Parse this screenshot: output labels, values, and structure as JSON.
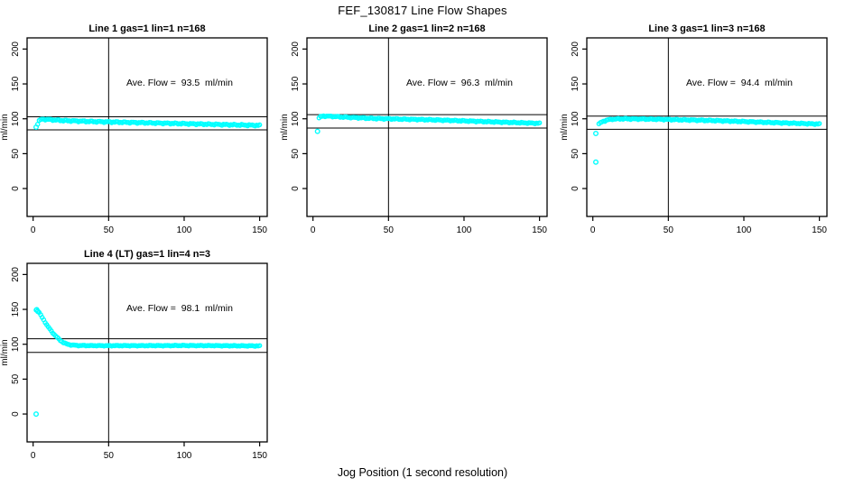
{
  "page_title": "FEF_130817  Line Flow Shapes",
  "xaxis_label": "Jog Position (1 second resolution)",
  "colors": {
    "marker": "#00ffff",
    "axis": "#000000",
    "background": "#ffffff"
  },
  "chart_data": [
    {
      "type": "scatter",
      "title": "Line 1 gas=1 lin=1 n=168",
      "annotation": "Ave. Flow =  93.5  ml/min",
      "ave_flow_ml_min": 93.5,
      "n": 168,
      "ylabel": "ml/min",
      "xticks": [
        0,
        50,
        100,
        150
      ],
      "yticks": [
        0,
        50,
        100,
        150,
        200
      ],
      "xlim": [
        -4,
        155
      ],
      "ylim": [
        -40,
        216
      ],
      "vline_x": 50,
      "hlines_y": [
        102.9,
        84.2
      ],
      "points_x_step": 1,
      "curve_keypoints": [
        [
          3,
          93
        ],
        [
          4,
          97.5
        ],
        [
          6,
          99.5
        ],
        [
          10,
          99
        ],
        [
          20,
          97.5
        ],
        [
          40,
          96
        ],
        [
          60,
          95
        ],
        [
          80,
          94
        ],
        [
          100,
          93
        ],
        [
          120,
          92
        ],
        [
          150,
          90.5
        ]
      ],
      "outliers": [
        [
          2,
          88
        ]
      ],
      "noise_amp": 1.1
    },
    {
      "type": "scatter",
      "title": "Line 2 gas=1 lin=2 n=168",
      "annotation": "Ave. Flow =  96.3  ml/min",
      "ave_flow_ml_min": 96.3,
      "n": 168,
      "ylabel": "ml/min",
      "xticks": [
        0,
        50,
        100,
        150
      ],
      "yticks": [
        0,
        50,
        100,
        150,
        200
      ],
      "xlim": [
        -4,
        155
      ],
      "ylim": [
        -40,
        216
      ],
      "vline_x": 50,
      "hlines_y": [
        105.9,
        86.7
      ],
      "points_x_step": 1,
      "curve_keypoints": [
        [
          4,
          101
        ],
        [
          5,
          103
        ],
        [
          7,
          104
        ],
        [
          12,
          103.5
        ],
        [
          20,
          102.5
        ],
        [
          40,
          100.5
        ],
        [
          60,
          99.5
        ],
        [
          80,
          98.5
        ],
        [
          100,
          97
        ],
        [
          120,
          95.5
        ],
        [
          150,
          93.5
        ]
      ],
      "outliers": [
        [
          3,
          82
        ]
      ],
      "noise_amp": 0.9
    },
    {
      "type": "scatter",
      "title": "Line 3 gas=1 lin=3 n=168",
      "annotation": "Ave. Flow =  94.4  ml/min",
      "ave_flow_ml_min": 94.4,
      "n": 168,
      "ylabel": "ml/min",
      "xticks": [
        0,
        50,
        100,
        150
      ],
      "yticks": [
        0,
        50,
        100,
        150,
        200
      ],
      "xlim": [
        -4,
        155
      ],
      "ylim": [
        -40,
        216
      ],
      "vline_x": 50,
      "hlines_y": [
        103.8,
        85.0
      ],
      "points_x_step": 1,
      "curve_keypoints": [
        [
          4,
          92.5
        ],
        [
          6,
          95.5
        ],
        [
          9,
          98
        ],
        [
          13,
          99.5
        ],
        [
          20,
          100
        ],
        [
          40,
          99.5
        ],
        [
          60,
          98.5
        ],
        [
          80,
          97.5
        ],
        [
          100,
          96
        ],
        [
          120,
          94.5
        ],
        [
          150,
          92.5
        ]
      ],
      "outliers": [
        [
          2,
          79
        ],
        [
          2,
          38
        ]
      ],
      "noise_amp": 0.9
    },
    {
      "type": "scatter",
      "title": "Line 4 (LT) gas=1 lin=4 n=3",
      "annotation": "Ave. Flow =  98.1  ml/min",
      "ave_flow_ml_min": 98.1,
      "n": 3,
      "ylabel": "ml/min",
      "xticks": [
        0,
        50,
        100,
        150
      ],
      "yticks": [
        0,
        50,
        100,
        150,
        200
      ],
      "xlim": [
        -4,
        155
      ],
      "ylim": [
        -40,
        216
      ],
      "vline_x": 50,
      "hlines_y": [
        107.9,
        88.3
      ],
      "points_x_step": 1,
      "curve_keypoints": [
        [
          2,
          149
        ],
        [
          3,
          148
        ],
        [
          4,
          145.5
        ],
        [
          5,
          142
        ],
        [
          6,
          138.5
        ],
        [
          7,
          135
        ],
        [
          8,
          131.5
        ],
        [
          9,
          128
        ],
        [
          10,
          125
        ],
        [
          12,
          119
        ],
        [
          14,
          114
        ],
        [
          16,
          109.5
        ],
        [
          18,
          105.5
        ],
        [
          20,
          102.5
        ],
        [
          22,
          100.5
        ],
        [
          25,
          99
        ],
        [
          30,
          98.2
        ],
        [
          40,
          98
        ],
        [
          60,
          98
        ],
        [
          80,
          98
        ],
        [
          100,
          98.2
        ],
        [
          120,
          98
        ],
        [
          150,
          97.6
        ]
      ],
      "outliers": [
        [
          2,
          0
        ],
        [
          2.4,
          149.5
        ],
        [
          3.2,
          147
        ]
      ],
      "noise_amp": 0.6
    }
  ]
}
